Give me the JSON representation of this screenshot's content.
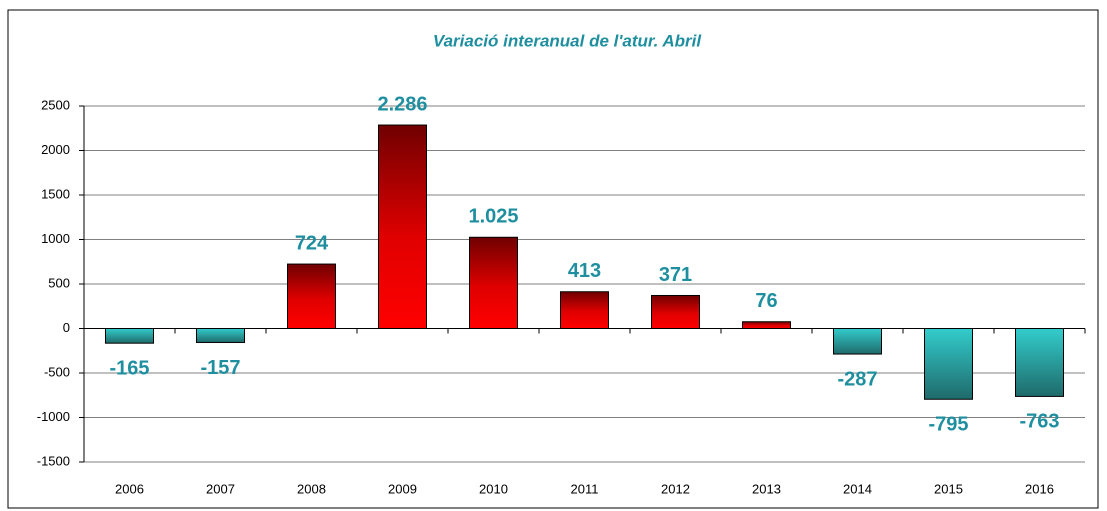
{
  "chart_data": {
    "type": "bar",
    "title": "Variació interanual de l'atur. Abril",
    "categories": [
      "2006",
      "2007",
      "2008",
      "2009",
      "2010",
      "2011",
      "2012",
      "2013",
      "2014",
      "2015",
      "2016"
    ],
    "values": [
      -165,
      -157,
      724,
      2286,
      1025,
      413,
      371,
      76,
      -287,
      -795,
      -763
    ],
    "value_labels": [
      "-165",
      "-157",
      "724",
      "2.286",
      "1.025",
      "413",
      "371",
      "76",
      "-287",
      "-795",
      "-763"
    ],
    "color": "#ff0000",
    "negative_color": "#33cccc",
    "ylim": [
      -1500,
      2500
    ],
    "yticks": [
      -1500,
      -1000,
      -500,
      0,
      500,
      1000,
      1500,
      2000,
      2500
    ],
    "grid": true
  }
}
